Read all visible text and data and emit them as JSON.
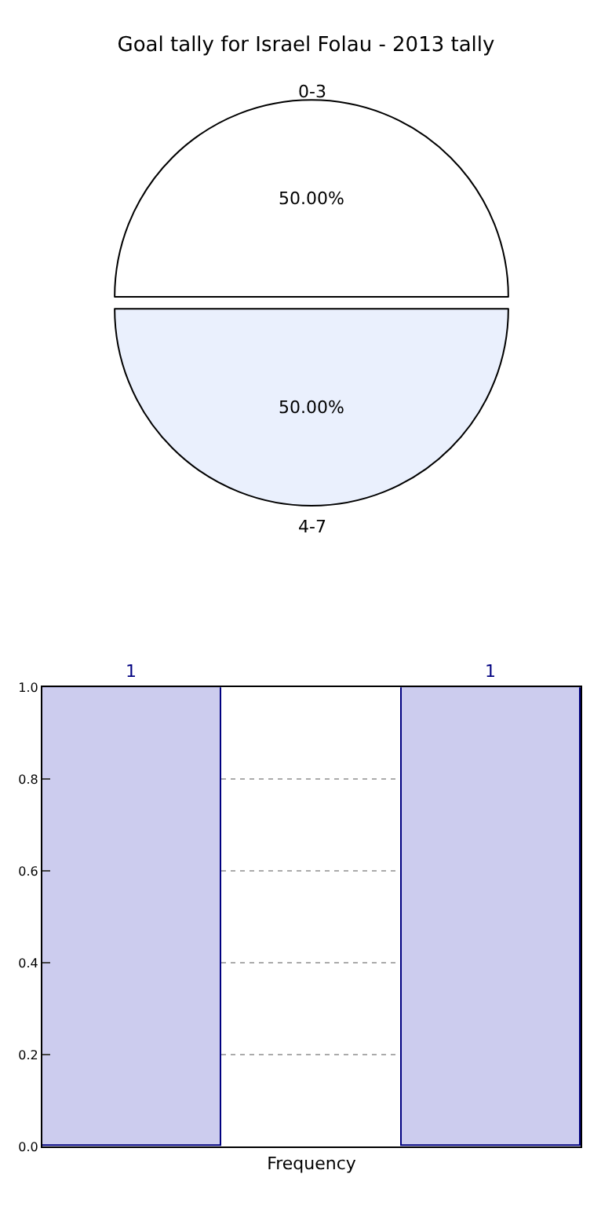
{
  "chart_data": [
    {
      "type": "pie",
      "title": "Goal tally for Israel Folau - 2013 tally",
      "categories": [
        "0-3",
        "4-7"
      ],
      "values": [
        50,
        50
      ],
      "value_labels": [
        "50.00%",
        "50.00%"
      ],
      "colors": [
        "#ffffff",
        "#eaf0fd"
      ]
    },
    {
      "type": "bar",
      "xlabel": "Frequency",
      "categories": [
        null,
        null,
        null
      ],
      "values": [
        1,
        null,
        1
      ],
      "value_labels": [
        "1",
        null,
        "1"
      ],
      "color": "#ccccee",
      "ylim": [
        0,
        1
      ],
      "yticks": [
        {
          "value": 0,
          "label": "0.0"
        },
        {
          "value": 0.2,
          "label": "0.2"
        },
        {
          "value": 0.4,
          "label": "0.4"
        },
        {
          "value": 0.6,
          "label": "0.6"
        },
        {
          "value": 0.8,
          "label": "0.8"
        },
        {
          "value": 1,
          "label": "1.0"
        }
      ],
      "grid": "y"
    }
  ]
}
